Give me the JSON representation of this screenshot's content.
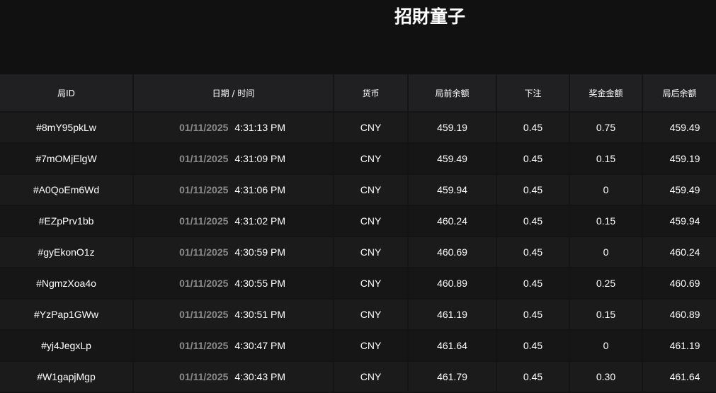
{
  "header": {
    "title": "招財童子"
  },
  "table": {
    "columns": [
      "局ID",
      "日期 / 时间",
      "货币",
      "局前余额",
      "下注",
      "奖金金额",
      "局后余额"
    ],
    "rows": [
      {
        "id": "#8mY95pkLw",
        "date": "01/11/2025",
        "time": "4:31:13 PM",
        "currency": "CNY",
        "before": "459.19",
        "bet": "0.45",
        "win": "0.75",
        "after": "459.49"
      },
      {
        "id": "#7mOMjElgW",
        "date": "01/11/2025",
        "time": "4:31:09 PM",
        "currency": "CNY",
        "before": "459.49",
        "bet": "0.45",
        "win": "0.15",
        "after": "459.19"
      },
      {
        "id": "#A0QoEm6Wd",
        "date": "01/11/2025",
        "time": "4:31:06 PM",
        "currency": "CNY",
        "before": "459.94",
        "bet": "0.45",
        "win": "0",
        "after": "459.49"
      },
      {
        "id": "#EZpPrv1bb",
        "date": "01/11/2025",
        "time": "4:31:02 PM",
        "currency": "CNY",
        "before": "460.24",
        "bet": "0.45",
        "win": "0.15",
        "after": "459.94"
      },
      {
        "id": "#gyEkonO1z",
        "date": "01/11/2025",
        "time": "4:30:59 PM",
        "currency": "CNY",
        "before": "460.69",
        "bet": "0.45",
        "win": "0",
        "after": "460.24"
      },
      {
        "id": "#NgmzXoa4o",
        "date": "01/11/2025",
        "time": "4:30:55 PM",
        "currency": "CNY",
        "before": "460.89",
        "bet": "0.45",
        "win": "0.25",
        "after": "460.69"
      },
      {
        "id": "#YzPap1GWw",
        "date": "01/11/2025",
        "time": "4:30:51 PM",
        "currency": "CNY",
        "before": "461.19",
        "bet": "0.45",
        "win": "0.15",
        "after": "460.89"
      },
      {
        "id": "#yj4JegxLp",
        "date": "01/11/2025",
        "time": "4:30:47 PM",
        "currency": "CNY",
        "before": "461.64",
        "bet": "0.45",
        "win": "0",
        "after": "461.19"
      },
      {
        "id": "#W1gapjMgp",
        "date": "01/11/2025",
        "time": "4:30:43 PM",
        "currency": "CNY",
        "before": "461.79",
        "bet": "0.45",
        "win": "0.30",
        "after": "461.64"
      }
    ]
  }
}
